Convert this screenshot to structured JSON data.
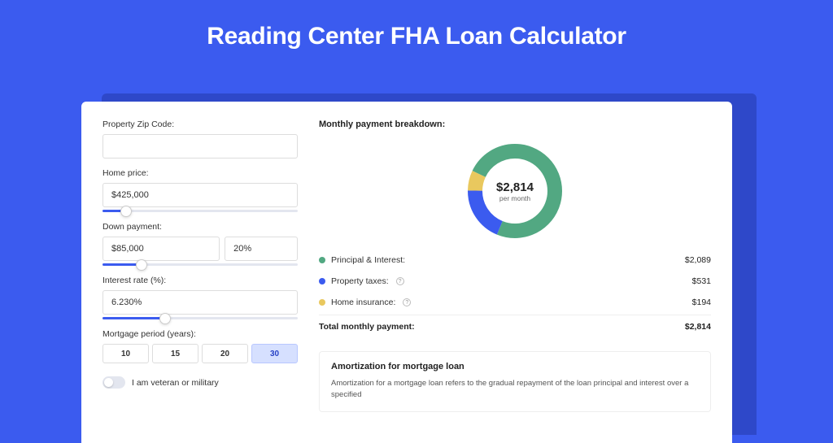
{
  "page": {
    "title": "Reading Center FHA Loan Calculator",
    "background_color": "#3b5bef",
    "shadow_color": "#2e48c9",
    "card_background": "#ffffff"
  },
  "form": {
    "zip": {
      "label": "Property Zip Code:",
      "value": ""
    },
    "home_price": {
      "label": "Home price:",
      "value": "$425,000",
      "slider_pct": 12
    },
    "down_payment": {
      "label": "Down payment:",
      "amount": "$85,000",
      "percent": "20%",
      "slider_pct": 20
    },
    "interest_rate": {
      "label": "Interest rate (%):",
      "value": "6.230%",
      "slider_pct": 32
    },
    "mortgage_period": {
      "label": "Mortgage period (years):",
      "options": [
        "10",
        "15",
        "20",
        "30"
      ],
      "selected_index": 3
    },
    "veteran": {
      "label": "I am veteran or military",
      "checked": false
    }
  },
  "breakdown": {
    "title": "Monthly payment breakdown:",
    "center_amount": "$2,814",
    "center_sub": "per month",
    "donut": {
      "type": "donut",
      "size": 120,
      "thickness": 18,
      "background_color": "#ffffff",
      "slices": [
        {
          "label": "Principal & Interest",
          "value": 2089,
          "color": "#52a882",
          "pct": 74.2
        },
        {
          "label": "Property taxes",
          "value": 531,
          "color": "#3b5bef",
          "pct": 18.9
        },
        {
          "label": "Home insurance",
          "value": 194,
          "color": "#e9c85e",
          "pct": 6.9
        }
      ]
    },
    "rows": [
      {
        "label": "Principal & Interest:",
        "value": "$2,089",
        "dot_color": "#52a882",
        "has_info": false
      },
      {
        "label": "Property taxes:",
        "value": "$531",
        "dot_color": "#3b5bef",
        "has_info": true
      },
      {
        "label": "Home insurance:",
        "value": "$194",
        "dot_color": "#e9c85e",
        "has_info": true
      }
    ],
    "total": {
      "label": "Total monthly payment:",
      "value": "$2,814"
    }
  },
  "amortization": {
    "title": "Amortization for mortgage loan",
    "text": "Amortization for a mortgage loan refers to the gradual repayment of the loan principal and interest over a specified"
  },
  "style": {
    "slider_fill": "#3b5bef",
    "slider_track": "#e3e6ef",
    "period_selected_bg": "#d6e0ff",
    "period_selected_border": "#b8c7ff",
    "period_selected_text": "#2843c6",
    "text_primary": "#222222",
    "text_secondary": "#666666",
    "border_color": "#dddddd"
  }
}
